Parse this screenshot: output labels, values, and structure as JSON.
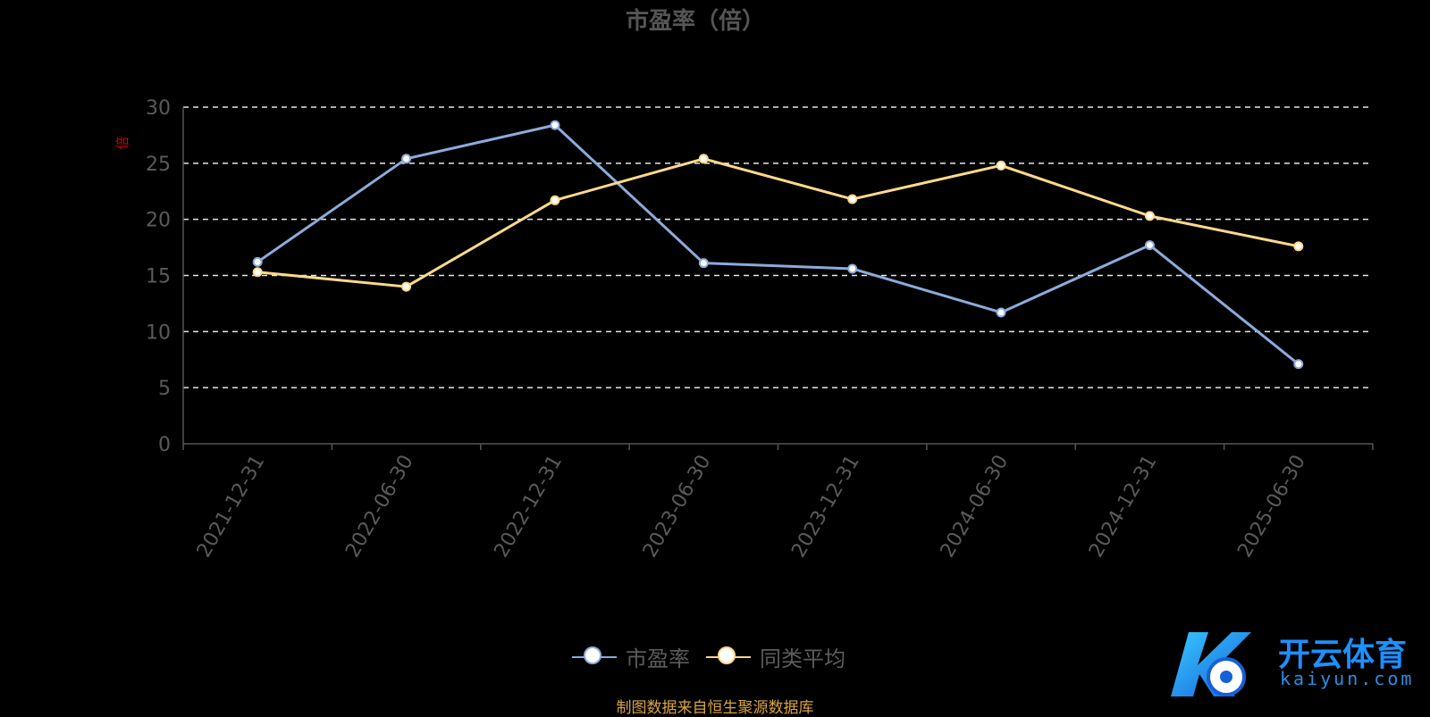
{
  "chart_data": {
    "type": "line",
    "title": "市盈率（倍）",
    "ylabel": "倍",
    "ylim": [
      0,
      30
    ],
    "yticks": [
      0,
      5,
      10,
      15,
      20,
      25,
      30
    ],
    "grid": true,
    "categories": [
      "2021-12-31",
      "2022-06-30",
      "2022-12-31",
      "2023-06-30",
      "2023-12-31",
      "2024-06-30",
      "2024-12-31",
      "2025-06-30"
    ],
    "series": [
      {
        "name": "市盈率",
        "color": "#8cabdb",
        "values": [
          16.2,
          25.4,
          28.4,
          16.1,
          15.6,
          11.7,
          17.7,
          7.1
        ]
      },
      {
        "name": "同类平均",
        "color": "#ffd98b",
        "values": [
          15.3,
          14.0,
          21.7,
          25.4,
          21.8,
          24.8,
          20.3,
          17.6
        ]
      }
    ],
    "legend_position": "bottom-center"
  },
  "source_note": "制图数据来自恒生聚源数据库",
  "watermark": {
    "text": "开云体育",
    "sub": "kaiyun.com"
  }
}
